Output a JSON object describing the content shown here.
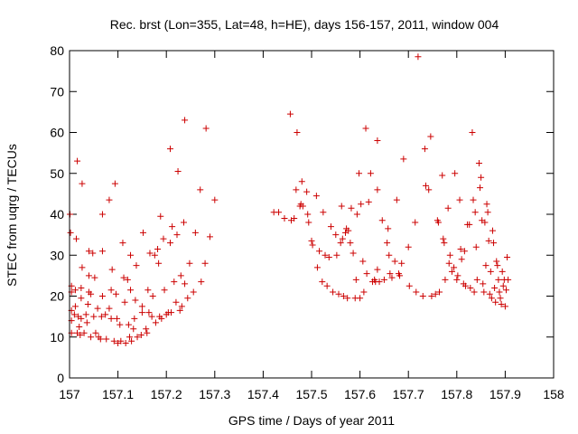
{
  "chart_data": {
    "type": "scatter",
    "title": "Rec. brst (Lon=355, Lat=48, h=HE), days 156-157, 2011, window 004",
    "xlabel": "GPS time / Days of year 2011",
    "ylabel": "STEC from uqrg / TECUs",
    "xlim": [
      157,
      158
    ],
    "ylim": [
      0,
      80
    ],
    "xticks": [
      157,
      157.1,
      157.2,
      157.3,
      157.4,
      157.5,
      157.6,
      157.7,
      157.8,
      157.9,
      158
    ],
    "xtick_labels": [
      "157",
      "157.1",
      "157.2",
      "157.3",
      "157.4",
      "157.5",
      "157.6",
      "157.7",
      "157.8",
      "157.9",
      "158"
    ],
    "yticks": [
      0,
      10,
      20,
      30,
      40,
      50,
      60,
      70,
      80
    ],
    "ytick_labels": [
      "0",
      "10",
      "20",
      "30",
      "40",
      "50",
      "60",
      "70",
      "80"
    ],
    "grid": false,
    "marker": "+",
    "color": "#cc0000",
    "points": [
      [
        157.001,
        40.0
      ],
      [
        157.002,
        35.5
      ],
      [
        157.004,
        22.5
      ],
      [
        157.004,
        21.0
      ],
      [
        157.004,
        16.5
      ],
      [
        157.004,
        14.0
      ],
      [
        157.004,
        11.0
      ],
      [
        157.01,
        15.5
      ],
      [
        157.012,
        17.5
      ],
      [
        157.012,
        21.5
      ],
      [
        157.014,
        34.0
      ],
      [
        157.016,
        53.0
      ],
      [
        157.016,
        11.0
      ],
      [
        157.018,
        15.0
      ],
      [
        157.02,
        12.5
      ],
      [
        157.022,
        10.5
      ],
      [
        157.024,
        19.5
      ],
      [
        157.024,
        14.5
      ],
      [
        157.024,
        22.0
      ],
      [
        157.026,
        27.0
      ],
      [
        157.026,
        47.5
      ],
      [
        157.03,
        11.0
      ],
      [
        157.034,
        15.5
      ],
      [
        157.036,
        13.5
      ],
      [
        157.038,
        18.0
      ],
      [
        157.04,
        21.0
      ],
      [
        157.04,
        25.0
      ],
      [
        157.04,
        31.0
      ],
      [
        157.044,
        20.5
      ],
      [
        157.044,
        10.0
      ],
      [
        157.048,
        30.5
      ],
      [
        157.05,
        15.0
      ],
      [
        157.052,
        24.5
      ],
      [
        157.054,
        11.0
      ],
      [
        157.058,
        17.0
      ],
      [
        157.06,
        10.0
      ],
      [
        157.064,
        9.5
      ],
      [
        157.066,
        15.0
      ],
      [
        157.068,
        20.0
      ],
      [
        157.068,
        31.0
      ],
      [
        157.068,
        40.0
      ],
      [
        157.074,
        15.5
      ],
      [
        157.076,
        9.5
      ],
      [
        157.082,
        43.5
      ],
      [
        157.082,
        17.0
      ],
      [
        157.086,
        14.5
      ],
      [
        157.086,
        21.5
      ],
      [
        157.088,
        26.5
      ],
      [
        157.092,
        9.0
      ],
      [
        157.094,
        47.5
      ],
      [
        157.096,
        20.5
      ],
      [
        157.098,
        14.5
      ],
      [
        157.1,
        8.5
      ],
      [
        157.104,
        13.0
      ],
      [
        157.106,
        9.0
      ],
      [
        157.11,
        33.0
      ],
      [
        157.112,
        24.5
      ],
      [
        157.114,
        18.5
      ],
      [
        157.116,
        8.5
      ],
      [
        157.12,
        24.0
      ],
      [
        157.122,
        13.0
      ],
      [
        157.124,
        10.0
      ],
      [
        157.126,
        21.5
      ],
      [
        157.126,
        30.0
      ],
      [
        157.128,
        9.0
      ],
      [
        157.132,
        12.0
      ],
      [
        157.134,
        14.5
      ],
      [
        157.136,
        19.0
      ],
      [
        157.138,
        27.5
      ],
      [
        157.14,
        10.0
      ],
      [
        157.148,
        10.5
      ],
      [
        157.15,
        16.0
      ],
      [
        157.15,
        17.5
      ],
      [
        157.152,
        35.5
      ],
      [
        157.158,
        12.0
      ],
      [
        157.16,
        11.0
      ],
      [
        157.162,
        21.5
      ],
      [
        157.164,
        16.0
      ],
      [
        157.166,
        30.5
      ],
      [
        157.17,
        15.0
      ],
      [
        157.172,
        20.0
      ],
      [
        157.176,
        30.0
      ],
      [
        157.178,
        13.5
      ],
      [
        157.182,
        31.5
      ],
      [
        157.184,
        28.0
      ],
      [
        157.186,
        15.0
      ],
      [
        157.188,
        39.5
      ],
      [
        157.19,
        14.5
      ],
      [
        157.194,
        34.0
      ],
      [
        157.196,
        21.5
      ],
      [
        157.2,
        15.5
      ],
      [
        157.204,
        16.0
      ],
      [
        157.208,
        56.0
      ],
      [
        157.208,
        33.0
      ],
      [
        157.21,
        16.0
      ],
      [
        157.212,
        37.0
      ],
      [
        157.216,
        23.5
      ],
      [
        157.22,
        18.5
      ],
      [
        157.222,
        35.0
      ],
      [
        157.224,
        50.5
      ],
      [
        157.228,
        16.5
      ],
      [
        157.23,
        25.0
      ],
      [
        157.232,
        17.5
      ],
      [
        157.236,
        38.0
      ],
      [
        157.238,
        63.0
      ],
      [
        157.238,
        23.0
      ],
      [
        157.244,
        19.5
      ],
      [
        157.248,
        28.0
      ],
      [
        157.256,
        21.0
      ],
      [
        157.26,
        35.5
      ],
      [
        157.27,
        46.0
      ],
      [
        157.272,
        23.5
      ],
      [
        157.28,
        28.0
      ],
      [
        157.282,
        61.0
      ],
      [
        157.29,
        34.5
      ],
      [
        157.3,
        43.5
      ],
      [
        157.422,
        40.5
      ],
      [
        157.432,
        40.5
      ],
      [
        157.444,
        39.0
      ],
      [
        157.456,
        64.5
      ],
      [
        157.458,
        38.5
      ],
      [
        157.464,
        39.0
      ],
      [
        157.468,
        46.0
      ],
      [
        157.47,
        60.0
      ],
      [
        157.476,
        42.0
      ],
      [
        157.478,
        42.5
      ],
      [
        157.48,
        48.0
      ],
      [
        157.482,
        42.0
      ],
      [
        157.49,
        45.5
      ],
      [
        157.492,
        40.0
      ],
      [
        157.494,
        38.0
      ],
      [
        157.5,
        33.5
      ],
      [
        157.502,
        32.5
      ],
      [
        157.51,
        44.5
      ],
      [
        157.512,
        27.0
      ],
      [
        157.516,
        31.0
      ],
      [
        157.522,
        23.5
      ],
      [
        157.524,
        40.5
      ],
      [
        157.528,
        30.0
      ],
      [
        157.532,
        22.5
      ],
      [
        157.536,
        29.5
      ],
      [
        157.54,
        37.0
      ],
      [
        157.544,
        21.0
      ],
      [
        157.55,
        35.0
      ],
      [
        157.552,
        30.0
      ],
      [
        157.556,
        20.5
      ],
      [
        157.56,
        33.0
      ],
      [
        157.562,
        42.0
      ],
      [
        157.564,
        34.0
      ],
      [
        157.566,
        20.0
      ],
      [
        157.57,
        35.5
      ],
      [
        157.572,
        36.5
      ],
      [
        157.574,
        19.5
      ],
      [
        157.576,
        36.0
      ],
      [
        157.58,
        33.0
      ],
      [
        157.582,
        41.5
      ],
      [
        157.586,
        30.5
      ],
      [
        157.59,
        19.5
      ],
      [
        157.592,
        24.0
      ],
      [
        157.594,
        40.0
      ],
      [
        157.598,
        50.0
      ],
      [
        157.6,
        19.5
      ],
      [
        157.602,
        42.5
      ],
      [
        157.606,
        28.5
      ],
      [
        157.608,
        21.0
      ],
      [
        157.612,
        61.0
      ],
      [
        157.614,
        25.5
      ],
      [
        157.618,
        43.0
      ],
      [
        157.622,
        50.0
      ],
      [
        157.626,
        23.5
      ],
      [
        157.63,
        24.0
      ],
      [
        157.632,
        23.5
      ],
      [
        157.636,
        58.0
      ],
      [
        157.636,
        46.0
      ],
      [
        157.636,
        26.5
      ],
      [
        157.64,
        23.5
      ],
      [
        157.646,
        38.5
      ],
      [
        157.65,
        24.0
      ],
      [
        157.656,
        33.0
      ],
      [
        157.658,
        36.5
      ],
      [
        157.66,
        30.0
      ],
      [
        157.662,
        25.5
      ],
      [
        157.666,
        24.5
      ],
      [
        157.672,
        28.5
      ],
      [
        157.676,
        43.5
      ],
      [
        157.68,
        25.5
      ],
      [
        157.682,
        25.0
      ],
      [
        157.686,
        28.0
      ],
      [
        157.69,
        53.5
      ],
      [
        157.7,
        32.0
      ],
      [
        157.702,
        22.5
      ],
      [
        157.714,
        38.0
      ],
      [
        157.716,
        21.0
      ],
      [
        157.72,
        78.5
      ],
      [
        157.73,
        20.0
      ],
      [
        157.734,
        56.0
      ],
      [
        157.736,
        47.0
      ],
      [
        157.742,
        46.0
      ],
      [
        157.746,
        59.0
      ],
      [
        157.748,
        20.0
      ],
      [
        157.756,
        20.5
      ],
      [
        157.76,
        38.5
      ],
      [
        157.762,
        38.0
      ],
      [
        157.764,
        21.0
      ],
      [
        157.77,
        49.5
      ],
      [
        157.772,
        34.0
      ],
      [
        157.774,
        33.0
      ],
      [
        157.776,
        24.0
      ],
      [
        157.782,
        41.5
      ],
      [
        157.784,
        28.0
      ],
      [
        157.786,
        30.0
      ],
      [
        157.79,
        26.0
      ],
      [
        157.794,
        27.0
      ],
      [
        157.796,
        50.0
      ],
      [
        157.8,
        24.0
      ],
      [
        157.802,
        25.0
      ],
      [
        157.806,
        43.5
      ],
      [
        157.808,
        31.5
      ],
      [
        157.81,
        29.0
      ],
      [
        157.814,
        23.0
      ],
      [
        157.816,
        31.0
      ],
      [
        157.818,
        22.5
      ],
      [
        157.822,
        37.5
      ],
      [
        157.826,
        37.5
      ],
      [
        157.828,
        22.0
      ],
      [
        157.832,
        60.0
      ],
      [
        157.834,
        43.5
      ],
      [
        157.836,
        21.0
      ],
      [
        157.838,
        40.5
      ],
      [
        157.84,
        32.0
      ],
      [
        157.842,
        24.0
      ],
      [
        157.846,
        52.5
      ],
      [
        157.848,
        46.5
      ],
      [
        157.85,
        49.0
      ],
      [
        157.852,
        38.5
      ],
      [
        157.854,
        23.0
      ],
      [
        157.856,
        21.0
      ],
      [
        157.858,
        38.0
      ],
      [
        157.86,
        27.5
      ],
      [
        157.862,
        42.5
      ],
      [
        157.864,
        40.5
      ],
      [
        157.866,
        33.5
      ],
      [
        157.868,
        20.5
      ],
      [
        157.87,
        26.0
      ],
      [
        157.872,
        19.5
      ],
      [
        157.874,
        36.0
      ],
      [
        157.876,
        33.0
      ],
      [
        157.878,
        22.0
      ],
      [
        157.88,
        18.5
      ],
      [
        157.882,
        28.5
      ],
      [
        157.884,
        27.5
      ],
      [
        157.886,
        24.0
      ],
      [
        157.888,
        21.0
      ],
      [
        157.89,
        19.5
      ],
      [
        157.892,
        18.0
      ],
      [
        157.894,
        26.0
      ],
      [
        157.896,
        22.5
      ],
      [
        157.898,
        24.0
      ],
      [
        157.9,
        17.5
      ],
      [
        157.902,
        21.5
      ],
      [
        157.904,
        29.5
      ],
      [
        157.906,
        24.0
      ]
    ]
  }
}
